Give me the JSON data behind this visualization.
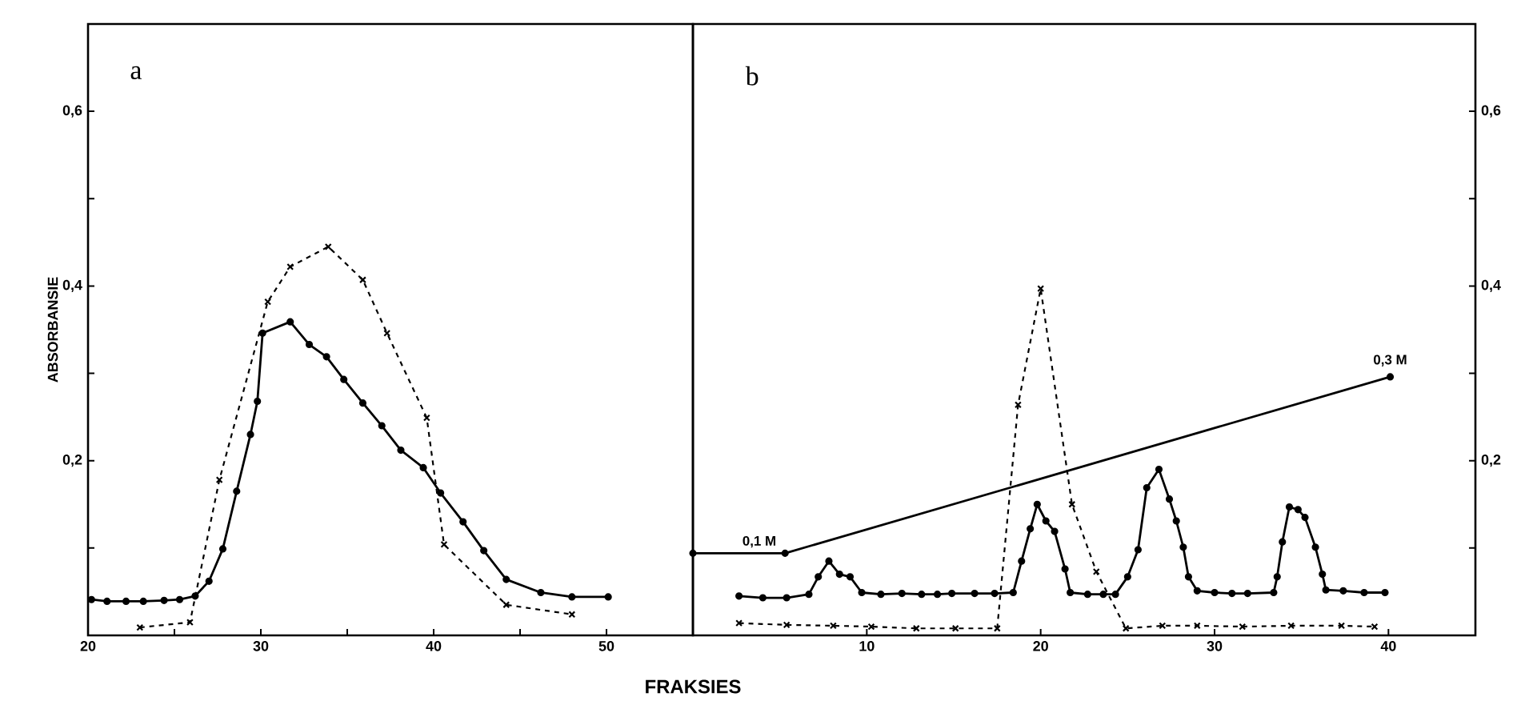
{
  "chart_data": [
    {
      "type": "line",
      "xlabel": "FRAKSIES",
      "ylabel": "ABSORBANSIE",
      "annotations": [
        "a"
      ],
      "xlim": [
        20,
        55
      ],
      "ylim": [
        0,
        0.7
      ],
      "xticks": [
        20,
        {
          "value": 25,
          "label": null
        },
        30,
        {
          "value": 35,
          "label": null
        },
        40,
        {
          "value": 45,
          "label": null
        },
        50
      ],
      "yticks": [
        {
          "value": 0.1,
          "label": null
        },
        {
          "value": 0.2,
          "label": "0,2"
        },
        {
          "value": 0.3,
          "label": null
        },
        {
          "value": 0.4,
          "label": "0,4"
        },
        {
          "value": 0.5,
          "label": null
        },
        {
          "value": 0.6,
          "label": "0,6"
        }
      ],
      "series": [
        {
          "color": "#000000",
          "marker": "circle",
          "line_style": "solid",
          "x": [
            20.2,
            21.1,
            22.2,
            23.2,
            24.4,
            25.3,
            26.2,
            27.0,
            27.8,
            28.6,
            29.4,
            29.8,
            30.1,
            31.7,
            32.8,
            33.8,
            34.8,
            35.9,
            37.0,
            38.1,
            39.4,
            40.4,
            41.7,
            42.9,
            44.2,
            46.2,
            48.0,
            50.1
          ],
          "values": [
            0.041,
            0.039,
            0.039,
            0.039,
            0.04,
            0.041,
            0.045,
            0.062,
            0.099,
            0.165,
            0.23,
            0.268,
            0.346,
            0.359,
            0.333,
            0.319,
            0.293,
            0.266,
            0.24,
            0.212,
            0.192,
            0.163,
            0.13,
            0.097,
            0.064,
            0.049,
            0.044,
            0.044
          ]
        },
        {
          "color": "#000000",
          "marker": "cross",
          "line_style": "dashed",
          "x": [
            23.0,
            25.9,
            27.6,
            30.4,
            31.7,
            33.9,
            35.9,
            37.3,
            39.6,
            40.6,
            44.2,
            48.0
          ],
          "values": [
            0.009,
            0.015,
            0.178,
            0.382,
            0.422,
            0.445,
            0.407,
            0.346,
            0.249,
            0.104,
            0.035,
            0.024
          ]
        }
      ]
    },
    {
      "type": "line",
      "annotations": [
        "b",
        {
          "text": "0,1 M",
          "x": 5.3,
          "y": 0.094
        },
        {
          "text": "0,3 M",
          "x": 40.1,
          "y": 0.296
        }
      ],
      "xlim": [
        0,
        45
      ],
      "ylim": [
        0,
        0.7
      ],
      "xticks": [
        10,
        20,
        30,
        40
      ],
      "yticks": [
        {
          "value": 0.1,
          "label": null
        },
        {
          "value": 0.2,
          "label": "0,2"
        },
        {
          "value": 0.3,
          "label": null
        },
        {
          "value": 0.4,
          "label": "0,4"
        },
        {
          "value": 0.5,
          "label": null
        },
        {
          "value": 0.6,
          "label": "0,6"
        }
      ],
      "series": [
        {
          "color": "#000000",
          "marker": "circle",
          "line_style": "solid",
          "x": [
            2.65,
            4.02,
            5.39,
            6.67,
            7.21,
            7.82,
            8.43,
            9.04,
            9.71,
            10.81,
            12.02,
            13.15,
            14.06,
            14.89,
            16.2,
            17.35,
            18.42,
            18.9,
            19.4,
            19.8,
            20.3,
            20.8,
            21.4,
            21.7,
            22.7,
            23.6,
            24.3,
            25.0,
            25.6,
            26.1,
            26.8,
            27.4,
            27.8,
            28.2,
            28.5,
            29.0,
            30.0,
            31.0,
            31.9,
            33.4,
            33.6,
            33.9,
            34.3,
            34.8,
            35.2,
            35.8,
            36.2,
            36.4,
            37.4,
            38.6,
            39.8
          ],
          "values": [
            0.045,
            0.043,
            0.043,
            0.047,
            0.067,
            0.085,
            0.07,
            0.067,
            0.049,
            0.047,
            0.048,
            0.047,
            0.047,
            0.048,
            0.048,
            0.048,
            0.049,
            0.085,
            0.122,
            0.15,
            0.131,
            0.119,
            0.076,
            0.049,
            0.047,
            0.047,
            0.047,
            0.067,
            0.098,
            0.169,
            0.19,
            0.156,
            0.131,
            0.101,
            0.067,
            0.051,
            0.049,
            0.048,
            0.048,
            0.049,
            0.067,
            0.107,
            0.147,
            0.144,
            0.135,
            0.101,
            0.07,
            0.052,
            0.051,
            0.049,
            0.049
          ]
        },
        {
          "color": "#000000",
          "marker": "cross",
          "line_style": "dashed",
          "x": [
            2.65,
            5.39,
            8.07,
            10.26,
            12.85,
            15.1,
            17.5,
            18.7,
            20.0,
            21.8,
            23.2,
            24.9,
            27.0,
            29.0,
            31.6,
            34.4,
            37.3,
            39.2
          ],
          "values": [
            0.014,
            0.012,
            0.011,
            0.01,
            0.008,
            0.008,
            0.008,
            0.264,
            0.397,
            0.15,
            0.073,
            0.008,
            0.011,
            0.011,
            0.01,
            0.011,
            0.011,
            0.01
          ]
        },
        {
          "color": "#000000",
          "marker": "circle",
          "line_style": "solid",
          "x": [
            0,
            5.3,
            40.1
          ],
          "values": [
            0.094,
            0.094,
            0.296
          ]
        }
      ]
    }
  ]
}
